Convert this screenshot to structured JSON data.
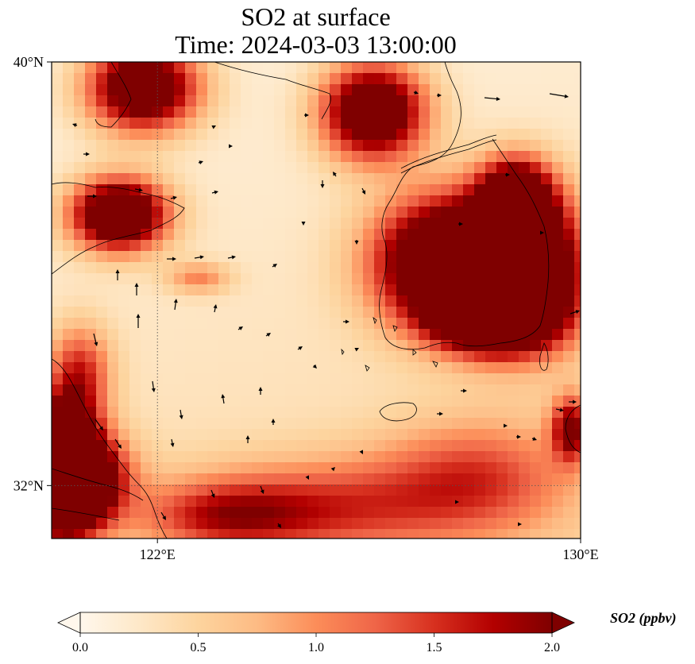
{
  "title": {
    "line1": "SO2 at surface",
    "line2": "Time: 2024-03-03 13:00:00"
  },
  "map": {
    "lon_range": [
      120,
      130
    ],
    "lat_range": [
      31,
      40
    ],
    "lat_ticks": [
      {
        "value": 40,
        "label": "40°N"
      },
      {
        "value": 32,
        "label": "32°N"
      }
    ],
    "lon_ticks": [
      {
        "value": 122,
        "label": "122°E"
      },
      {
        "value": 130,
        "label": "130°E"
      }
    ],
    "gridlines": {
      "lons": [
        122
      ],
      "lats": [
        32
      ],
      "style": "dotted"
    },
    "field": "SO2",
    "units": "ppbv",
    "description_hidden": false
  },
  "colorbar": {
    "label": "SO2 (ppbv)",
    "min": 0.0,
    "max": 2.0,
    "extend": "both",
    "ticks": [
      "0.0",
      "0.5",
      "1.0",
      "1.5",
      "2.0"
    ],
    "colormap": "OrRd",
    "colors": [
      "#fff7ec",
      "#fee8c8",
      "#fdd49e",
      "#fdbb84",
      "#fc8d59",
      "#ef6548",
      "#d7301f",
      "#b30000",
      "#7f0000"
    ]
  }
}
